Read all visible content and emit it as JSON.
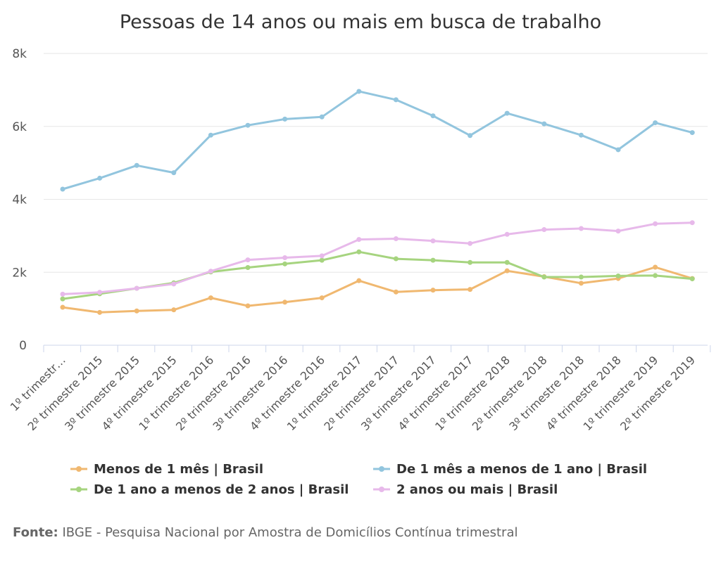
{
  "chart_data": {
    "type": "line",
    "title": "Pessoas de 14 anos ou mais em busca de trabalho",
    "categories": [
      "1º trimestr…",
      "2º trimestre 2015",
      "3º trimestre 2015",
      "4º trimestre 2015",
      "1º trimestre 2016",
      "2º trimestre 2016",
      "3º trimestre 2016",
      "4º trimestre 2016",
      "1º trimestre 2017",
      "2º trimestre 2017",
      "3º trimestre 2017",
      "4º trimestre 2017",
      "1º trimestre 2018",
      "2º trimestre 2018",
      "3º trimestre 2018",
      "4º trimestre 2018",
      "1º trimestre 2019",
      "2º trimestre 2019"
    ],
    "y_ticks": [
      {
        "value": 0,
        "label": "0"
      },
      {
        "value": 2000,
        "label": "2k"
      },
      {
        "value": 4000,
        "label": "4k"
      },
      {
        "value": 6000,
        "label": "6k"
      },
      {
        "value": 8000,
        "label": "8k"
      }
    ],
    "ylim": [
      0,
      8000
    ],
    "grid": true,
    "legend_position": "bottom",
    "series": [
      {
        "name": "Menos de 1 mês | Brasil",
        "color": "#f0b870",
        "values": [
          1040,
          900,
          940,
          970,
          1300,
          1080,
          1180,
          1300,
          1770,
          1460,
          1510,
          1530,
          2040,
          1880,
          1700,
          1830,
          2140,
          1830
        ]
      },
      {
        "name": "De 1 mês a menos de 1 ano | Brasil",
        "color": "#92c5de",
        "values": [
          4280,
          4580,
          4930,
          4730,
          5760,
          6030,
          6200,
          6260,
          6960,
          6730,
          6290,
          5750,
          6360,
          6070,
          5760,
          5360,
          6100,
          5830
        ]
      },
      {
        "name": "De 1 ano a menos de 2 anos | Brasil",
        "color": "#a6d47f",
        "values": [
          1270,
          1410,
          1560,
          1710,
          2010,
          2130,
          2230,
          2330,
          2560,
          2370,
          2330,
          2270,
          2270,
          1870,
          1870,
          1900,
          1910,
          1820
        ]
      },
      {
        "name": "2 anos ou mais | Brasil",
        "color": "#e7b9ea",
        "values": [
          1400,
          1450,
          1560,
          1680,
          2030,
          2340,
          2400,
          2450,
          2900,
          2920,
          2860,
          2790,
          3040,
          3170,
          3200,
          3130,
          3330,
          3360
        ]
      }
    ]
  },
  "source": {
    "label": "Fonte:",
    "text": " IBGE - Pesquisa Nacional por Amostra de Domicílios Contínua trimestral"
  }
}
